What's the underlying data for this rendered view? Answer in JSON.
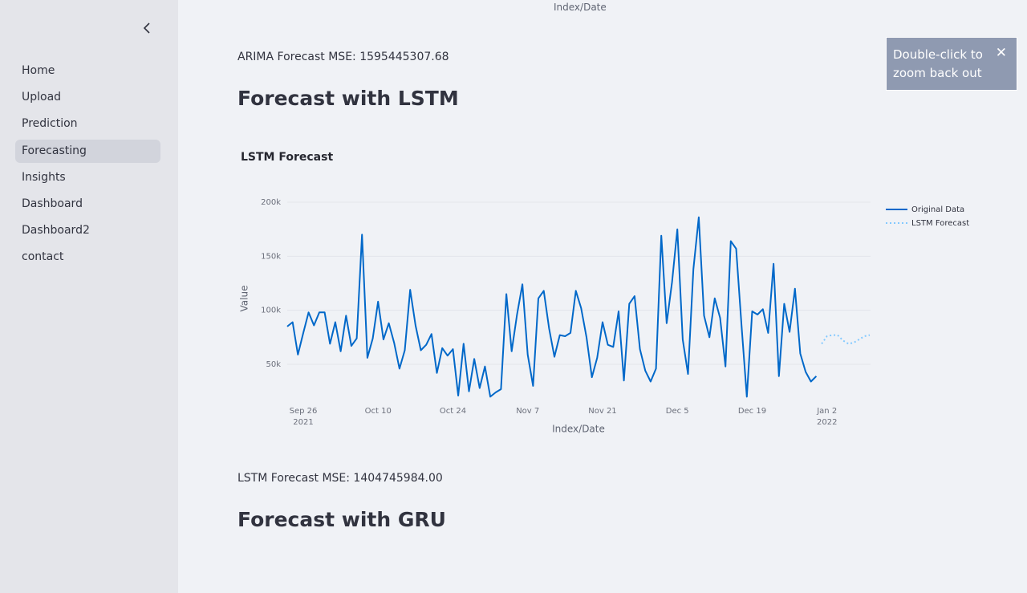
{
  "sidebar": {
    "nav": [
      "Home",
      "Upload",
      "Prediction",
      "Forecasting",
      "Insights",
      "Dashboard",
      "Dashboard2",
      "contact"
    ]
  },
  "previous_chart_axis_title": "Index/Date",
  "arima_mse": "ARIMA Forecast MSE: 1595445307.68",
  "lstm_heading": "Forecast with LSTM",
  "lstm_mse": "LSTM Forecast MSE: 1404745984.00",
  "gru_heading": "Forecast with GRU",
  "tooltip": {
    "text": "Double-click to zoom back out",
    "close": "✕"
  },
  "chart_data": {
    "type": "line",
    "title": "LSTM Forecast",
    "x_label": "Index/Date",
    "y_label": "Value",
    "xlim": [
      "2021-09-23",
      "2022-01-10"
    ],
    "xticks": [
      {
        "value": "2021-09-26",
        "label": "Sep 26\n2021"
      },
      {
        "value": "2021-10-10",
        "label": "Oct 10"
      },
      {
        "value": "2021-10-24",
        "label": "Oct 24"
      },
      {
        "value": "2021-11-07",
        "label": "Nov 7"
      },
      {
        "value": "2021-11-21",
        "label": "Nov 21"
      },
      {
        "value": "2021-12-05",
        "label": "Dec 5"
      },
      {
        "value": "2021-12-19",
        "label": "Dec 19"
      },
      {
        "value": "2022-01-02",
        "label": "Jan 2\n2022"
      }
    ],
    "ylim": [
      18800,
      208900
    ],
    "yticks": [
      {
        "value": 50000,
        "label": "50k"
      },
      {
        "value": 100000,
        "label": "100k"
      },
      {
        "value": 150000,
        "label": "150k"
      },
      {
        "value": 200000,
        "label": "200k"
      }
    ],
    "grid": true,
    "legend": "right",
    "series": [
      {
        "name": "Original Data",
        "color": "#0068c9",
        "dash": "solid",
        "x": [
          "2021-09-23",
          "2021-09-24",
          "2021-09-25",
          "2021-09-26",
          "2021-09-27",
          "2021-09-28",
          "2021-09-29",
          "2021-09-30",
          "2021-10-01",
          "2021-10-02",
          "2021-10-03",
          "2021-10-04",
          "2021-10-05",
          "2021-10-06",
          "2021-10-07",
          "2021-10-08",
          "2021-10-09",
          "2021-10-10",
          "2021-10-11",
          "2021-10-12",
          "2021-10-13",
          "2021-10-14",
          "2021-10-15",
          "2021-10-16",
          "2021-10-17",
          "2021-10-18",
          "2021-10-19",
          "2021-10-20",
          "2021-10-21",
          "2021-10-22",
          "2021-10-23",
          "2021-10-24",
          "2021-10-25",
          "2021-10-26",
          "2021-10-27",
          "2021-10-28",
          "2021-10-29",
          "2021-10-30",
          "2021-10-31",
          "2021-11-01",
          "2021-11-02",
          "2021-11-03",
          "2021-11-04",
          "2021-11-05",
          "2021-11-06",
          "2021-11-07",
          "2021-11-08",
          "2021-11-09",
          "2021-11-10",
          "2021-11-11",
          "2021-11-12",
          "2021-11-13",
          "2021-11-14",
          "2021-11-15",
          "2021-11-16",
          "2021-11-17",
          "2021-11-18",
          "2021-11-19",
          "2021-11-20",
          "2021-11-21",
          "2021-11-22",
          "2021-11-23",
          "2021-11-24",
          "2021-11-25",
          "2021-11-26",
          "2021-11-27",
          "2021-11-28",
          "2021-11-29",
          "2021-11-30",
          "2021-12-01",
          "2021-12-02",
          "2021-12-03",
          "2021-12-04",
          "2021-12-05",
          "2021-12-06",
          "2021-12-07",
          "2021-12-08",
          "2021-12-09",
          "2021-12-10",
          "2021-12-11",
          "2021-12-12",
          "2021-12-13",
          "2021-12-14",
          "2021-12-15",
          "2021-12-16",
          "2021-12-17",
          "2021-12-18",
          "2021-12-19",
          "2021-12-20",
          "2021-12-21",
          "2021-12-22",
          "2021-12-23",
          "2021-12-24",
          "2021-12-25",
          "2021-12-26",
          "2021-12-27",
          "2021-12-28",
          "2021-12-29",
          "2021-12-30",
          "2021-12-31"
        ],
        "values": [
          85000,
          89000,
          59000,
          79000,
          98000,
          86000,
          98000,
          98000,
          69000,
          89000,
          62000,
          95000,
          67000,
          74000,
          170000,
          56000,
          74000,
          108000,
          73000,
          88000,
          70000,
          46000,
          63000,
          119000,
          86000,
          63000,
          68000,
          78000,
          42000,
          65000,
          58000,
          64000,
          21000,
          69000,
          25000,
          55000,
          28000,
          48000,
          20000,
          24000,
          27000,
          115000,
          62000,
          96000,
          124000,
          59000,
          30000,
          111000,
          118000,
          83000,
          57000,
          77000,
          76000,
          79000,
          118000,
          102000,
          75000,
          38000,
          56000,
          89000,
          68000,
          66000,
          99000,
          35000,
          106000,
          113000,
          64000,
          44000,
          34000,
          46000,
          169000,
          88000,
          126000,
          175000,
          73000,
          41000,
          138000,
          186000,
          95000,
          75000,
          111000,
          93000,
          48000,
          164000,
          157000,
          87000,
          20000,
          99000,
          96000,
          101000,
          79000,
          143000,
          39000,
          106000,
          80000,
          120000,
          60000,
          43000,
          34000,
          39000
        ]
      },
      {
        "name": "LSTM Forecast",
        "color": "#83c9ff",
        "dash": "dot",
        "x": [
          "2022-01-01",
          "2022-01-02",
          "2022-01-03",
          "2022-01-04",
          "2022-01-05",
          "2022-01-06",
          "2022-01-07",
          "2022-01-08",
          "2022-01-09",
          "2022-01-10"
        ],
        "values": [
          69000,
          76000,
          77000,
          77000,
          72000,
          69000,
          70000,
          73000,
          76000,
          77000
        ]
      }
    ]
  }
}
